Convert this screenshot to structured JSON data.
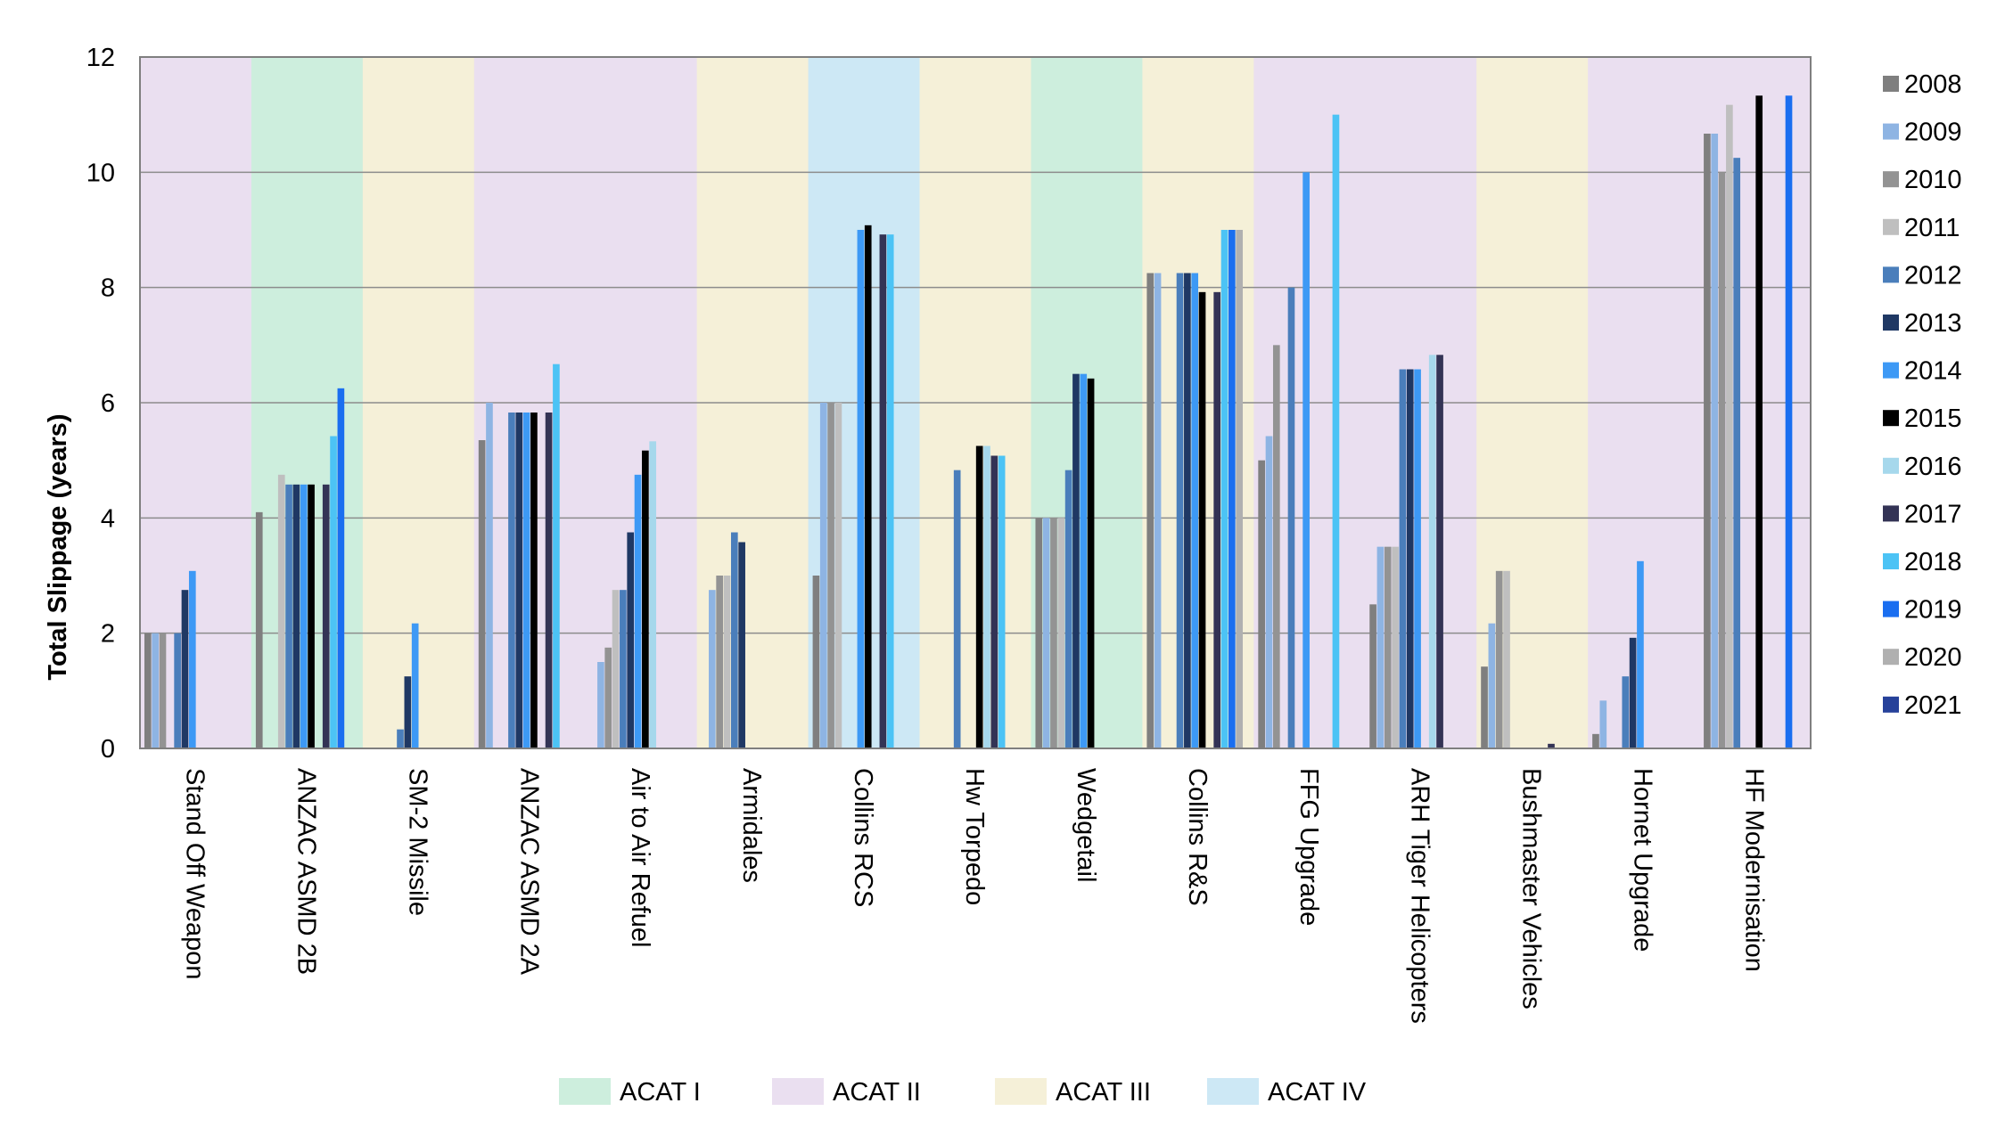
{
  "chart_data": {
    "type": "bar",
    "title": "",
    "xlabel": "",
    "ylabel": "Total Slippage (years)",
    "ylim": [
      0,
      12
    ],
    "yticks": [
      "0",
      "2",
      "4",
      "6",
      "8",
      "10",
      "12"
    ],
    "grid": true,
    "legend_position": "right",
    "categories": [
      "Stand Off Weapon",
      "ANZAC ASMD 2B",
      "SM-2 Missile",
      "ANZAC ASMD 2A",
      "Air to Air Refuel",
      "Armidales",
      "Collins RCS",
      "Hw Torpedo",
      "Wedgetail",
      "Collins R&S",
      "FFG Upgrade",
      "ARH Tiger Helicopters",
      "Bushmaster Vehicles",
      "Hornet Upgrade",
      "HF Modernisation"
    ],
    "category_class": [
      "ACAT II",
      "ACAT I",
      "ACAT III",
      "ACAT II",
      "ACAT II",
      "ACAT III",
      "ACAT IV",
      "ACAT III",
      "ACAT I",
      "ACAT III",
      "ACAT II",
      "ACAT II",
      "ACAT III",
      "ACAT II",
      "ACAT II"
    ],
    "classes": [
      {
        "name": "ACAT I",
        "color": "#cdeedd"
      },
      {
        "name": "ACAT II",
        "color": "#eadff0"
      },
      {
        "name": "ACAT III",
        "color": "#f5f0d8"
      },
      {
        "name": "ACAT IV",
        "color": "#cde8f5"
      }
    ],
    "series": [
      {
        "name": "2008",
        "color": "#7f7f7f",
        "values": [
          2.0,
          4.1,
          null,
          5.35,
          null,
          null,
          3.0,
          null,
          4.0,
          8.25,
          5.0,
          2.5,
          1.42,
          0.25,
          10.67
        ]
      },
      {
        "name": "2009",
        "color": "#8eb4e3",
        "values": [
          2.0,
          null,
          null,
          6.0,
          1.5,
          2.75,
          6.0,
          null,
          4.0,
          8.25,
          5.42,
          3.5,
          2.17,
          0.83,
          10.67
        ]
      },
      {
        "name": "2010",
        "color": "#939393",
        "values": [
          2.0,
          null,
          null,
          null,
          1.75,
          3.0,
          6.0,
          null,
          4.0,
          null,
          7.0,
          3.5,
          3.08,
          null,
          10.0
        ]
      },
      {
        "name": "2011",
        "color": "#bfbfbf",
        "values": [
          null,
          4.75,
          null,
          null,
          2.75,
          3.0,
          6.0,
          null,
          4.0,
          null,
          null,
          3.5,
          3.08,
          null,
          11.17
        ]
      },
      {
        "name": "2012",
        "color": "#4a7ebb",
        "values": [
          2.0,
          4.58,
          0.33,
          5.83,
          2.75,
          3.75,
          null,
          4.83,
          4.83,
          8.25,
          8.0,
          6.58,
          null,
          1.25,
          10.25
        ]
      },
      {
        "name": "2013",
        "color": "#1f3864",
        "values": [
          2.75,
          4.58,
          1.25,
          5.83,
          3.75,
          3.58,
          null,
          null,
          6.5,
          8.25,
          null,
          6.58,
          null,
          1.92,
          null
        ]
      },
      {
        "name": "2014",
        "color": "#3d99f5",
        "values": [
          3.08,
          4.58,
          2.17,
          5.83,
          4.75,
          null,
          9.0,
          null,
          6.5,
          8.25,
          10.0,
          6.58,
          null,
          3.25,
          null
        ]
      },
      {
        "name": "2015",
        "color": "#000000",
        "values": [
          null,
          4.58,
          null,
          5.83,
          5.17,
          null,
          9.08,
          5.25,
          6.42,
          7.92,
          null,
          null,
          null,
          null,
          11.33
        ]
      },
      {
        "name": "2016",
        "color": "#a6d8ec",
        "values": [
          null,
          null,
          null,
          null,
          5.33,
          null,
          null,
          5.25,
          null,
          null,
          null,
          6.83,
          null,
          null,
          null
        ]
      },
      {
        "name": "2017",
        "color": "#333355",
        "values": [
          null,
          4.58,
          null,
          5.83,
          null,
          null,
          8.92,
          5.08,
          null,
          7.92,
          null,
          6.83,
          0.08,
          null,
          null
        ]
      },
      {
        "name": "2018",
        "color": "#4cc3f5",
        "values": [
          null,
          5.42,
          null,
          6.67,
          null,
          null,
          8.92,
          5.08,
          null,
          9.0,
          11.0,
          null,
          null,
          null,
          null
        ]
      },
      {
        "name": "2019",
        "color": "#1a6ef0",
        "values": [
          null,
          6.25,
          null,
          null,
          null,
          null,
          null,
          null,
          null,
          9.0,
          null,
          null,
          null,
          null,
          11.33
        ]
      },
      {
        "name": "2020",
        "color": "#b0b0b0",
        "values": [
          null,
          null,
          null,
          null,
          null,
          null,
          null,
          null,
          null,
          9.0,
          null,
          null,
          null,
          null,
          null
        ]
      },
      {
        "name": "2021",
        "color": "#26419a",
        "values": [
          null,
          null,
          null,
          null,
          null,
          null,
          null,
          null,
          null,
          null,
          null,
          null,
          null,
          null,
          null
        ]
      }
    ]
  }
}
